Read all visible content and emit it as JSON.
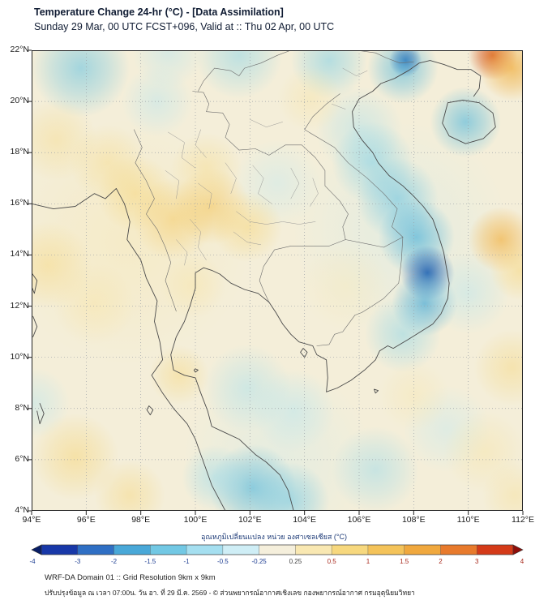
{
  "header": {
    "title": "Temperature Change 24-hr (°C) - [Data Assimilation]",
    "subtitle": "Sunday 29 Mar, 00 UTC FCST+096, Valid at :: Thu 02 Apr, 00 UTC"
  },
  "theme": {
    "title_color": "#101c33",
    "axis_text_color": "#1a1a1a",
    "colorbar_label_color": "#1f3c78",
    "footer_text_color": "#222222",
    "map_frame_color": "#222222",
    "grid_color": "#9aa0a6",
    "coast_color": "#4a4a4a",
    "border_color": "#6b6b6b",
    "minor_line_color": "#8d8d8d",
    "background_color": "#f4eed9",
    "negative_tick_color": "#1f3f93",
    "positive_tick_color": "#a8291c",
    "zero_tick_color": "#444444"
  },
  "map": {
    "extent": {
      "lon_min": 94,
      "lon_max": 112,
      "lat_min": 4,
      "lat_max": 22
    },
    "grid_step_deg": 2,
    "lat_ticks": [
      {
        "value": 22,
        "label": "22°N"
      },
      {
        "value": 20,
        "label": "20°N"
      },
      {
        "value": 18,
        "label": "18°N"
      },
      {
        "value": 16,
        "label": "16°N"
      },
      {
        "value": 14,
        "label": "14°N"
      },
      {
        "value": 12,
        "label": "12°N"
      },
      {
        "value": 10,
        "label": "10°N"
      },
      {
        "value": 8,
        "label": "8°N"
      },
      {
        "value": 6,
        "label": "6°N"
      },
      {
        "value": 4,
        "label": "4°N"
      }
    ],
    "lon_ticks": [
      {
        "value": 94,
        "label": "94°E"
      },
      {
        "value": 96,
        "label": "96°E"
      },
      {
        "value": 98,
        "label": "98°E"
      },
      {
        "value": 100,
        "label": "100°E"
      },
      {
        "value": 102,
        "label": "102°E"
      },
      {
        "value": 104,
        "label": "104°E"
      },
      {
        "value": 106,
        "label": "106°E"
      },
      {
        "value": 108,
        "label": "108°E"
      },
      {
        "value": 110,
        "label": "110°E"
      },
      {
        "value": 112,
        "label": "112°E"
      }
    ]
  },
  "chart_data": {
    "type": "heatmap",
    "units": "°C",
    "extent": {
      "lon_min": 94,
      "lon_max": 112,
      "lat_min": 4,
      "lat_max": 22
    },
    "colormap": [
      {
        "value": -4,
        "color": "#08276b"
      },
      {
        "value": -3,
        "color": "#1d4fa5"
      },
      {
        "value": -2,
        "color": "#2f86c8"
      },
      {
        "value": -1.5,
        "color": "#4fb3da"
      },
      {
        "value": -1,
        "color": "#7dcfe6"
      },
      {
        "value": -0.5,
        "color": "#bfe9f2"
      },
      {
        "value": 0,
        "color": "#f4eed9"
      },
      {
        "value": 0.5,
        "color": "#f7e6ad"
      },
      {
        "value": 1,
        "color": "#f6d67c"
      },
      {
        "value": 1.5,
        "color": "#f3c058"
      },
      {
        "value": 2,
        "color": "#efa83e"
      },
      {
        "value": 3,
        "color": "#e2712b"
      },
      {
        "value": 4,
        "color": "#b21a0f"
      }
    ],
    "features": [
      {
        "lon": 97.5,
        "lat": 14.5,
        "value": 0.5,
        "radius": 4.5
      },
      {
        "lon": 107.5,
        "lat": 15.0,
        "value": -0.4,
        "radius": 4.0
      },
      {
        "lon": 103.0,
        "lat": 6.0,
        "value": -0.4,
        "radius": 3.5
      },
      {
        "lon": 95.8,
        "lat": 21.3,
        "value": -1.2,
        "radius": 1.8
      },
      {
        "lon": 99.0,
        "lat": 21.9,
        "value": -0.6,
        "radius": 1.3
      },
      {
        "lon": 101.6,
        "lat": 21.8,
        "value": -0.9,
        "radius": 1.6
      },
      {
        "lon": 104.9,
        "lat": 21.6,
        "value": -1.0,
        "radius": 1.4
      },
      {
        "lon": 107.7,
        "lat": 21.6,
        "value": -3.0,
        "radius": 0.6
      },
      {
        "lon": 107.6,
        "lat": 21.3,
        "value": -1.4,
        "radius": 1.3
      },
      {
        "lon": 109.9,
        "lat": 19.2,
        "value": -1.4,
        "radius": 1.3
      },
      {
        "lon": 106.0,
        "lat": 18.9,
        "value": -0.7,
        "radius": 1.6
      },
      {
        "lon": 106.5,
        "lat": 17.6,
        "value": -1.0,
        "radius": 1.5
      },
      {
        "lon": 107.4,
        "lat": 16.2,
        "value": -1.2,
        "radius": 1.5
      },
      {
        "lon": 108.1,
        "lat": 14.7,
        "value": -1.5,
        "radius": 1.4
      },
      {
        "lon": 108.5,
        "lat": 13.3,
        "value": -2.6,
        "radius": 1.0
      },
      {
        "lon": 108.4,
        "lat": 12.1,
        "value": -1.6,
        "radius": 1.2
      },
      {
        "lon": 107.6,
        "lat": 10.9,
        "value": -0.9,
        "radius": 1.4
      },
      {
        "lon": 103.0,
        "lat": 16.8,
        "value": -0.5,
        "radius": 1.6
      },
      {
        "lon": 101.9,
        "lat": 8.8,
        "value": -0.7,
        "radius": 1.6
      },
      {
        "lon": 103.6,
        "lat": 7.9,
        "value": -0.6,
        "radius": 1.5
      },
      {
        "lon": 102.1,
        "lat": 4.9,
        "value": -1.4,
        "radius": 1.6
      },
      {
        "lon": 103.5,
        "lat": 4.4,
        "value": -1.1,
        "radius": 1.4
      },
      {
        "lon": 100.7,
        "lat": 5.3,
        "value": -0.8,
        "radius": 1.2
      },
      {
        "lon": 106.6,
        "lat": 5.6,
        "value": -0.8,
        "radius": 1.6
      },
      {
        "lon": 109.2,
        "lat": 7.2,
        "value": -0.5,
        "radius": 1.6
      },
      {
        "lon": 94.1,
        "lat": 8.2,
        "value": -0.6,
        "radius": 1.3
      },
      {
        "lon": 110.0,
        "lat": 12.5,
        "value": -0.6,
        "radius": 1.5
      },
      {
        "lon": 98.6,
        "lat": 20.0,
        "value": -0.6,
        "radius": 1.3
      },
      {
        "lon": 110.9,
        "lat": 21.8,
        "value": 3.2,
        "radius": 0.9
      },
      {
        "lon": 111.6,
        "lat": 21.3,
        "value": 1.8,
        "radius": 1.2
      },
      {
        "lon": 94.9,
        "lat": 18.5,
        "value": 0.8,
        "radius": 1.5
      },
      {
        "lon": 96.8,
        "lat": 17.6,
        "value": 0.8,
        "radius": 1.4
      },
      {
        "lon": 97.8,
        "lat": 16.4,
        "value": 1.0,
        "radius": 1.4
      },
      {
        "lon": 99.2,
        "lat": 15.4,
        "value": 1.2,
        "radius": 1.5
      },
      {
        "lon": 100.6,
        "lat": 15.9,
        "value": 1.3,
        "radius": 1.4
      },
      {
        "lon": 101.9,
        "lat": 15.1,
        "value": 1.0,
        "radius": 1.3
      },
      {
        "lon": 100.4,
        "lat": 17.4,
        "value": 0.8,
        "radius": 1.3
      },
      {
        "lon": 94.6,
        "lat": 13.6,
        "value": 0.9,
        "radius": 1.6
      },
      {
        "lon": 96.3,
        "lat": 12.1,
        "value": 0.6,
        "radius": 1.5
      },
      {
        "lon": 99.4,
        "lat": 9.3,
        "value": 0.9,
        "radius": 1.1
      },
      {
        "lon": 95.6,
        "lat": 6.1,
        "value": 1.0,
        "radius": 1.6
      },
      {
        "lon": 97.6,
        "lat": 4.6,
        "value": 0.9,
        "radius": 1.3
      },
      {
        "lon": 111.2,
        "lat": 14.6,
        "value": 1.7,
        "radius": 1.2
      },
      {
        "lon": 111.9,
        "lat": 13.4,
        "value": 1.0,
        "radius": 1.1
      },
      {
        "lon": 111.6,
        "lat": 9.6,
        "value": 0.9,
        "radius": 1.4
      },
      {
        "lon": 110.6,
        "lat": 6.3,
        "value": 0.6,
        "radius": 1.5
      },
      {
        "lon": 104.2,
        "lat": 20.1,
        "value": 0.6,
        "radius": 1.2
      },
      {
        "lon": 108.0,
        "lat": 8.5,
        "value": 0.5,
        "radius": 1.3
      },
      {
        "lon": 99.9,
        "lat": 12.8,
        "value": 0.6,
        "radius": 1.2
      },
      {
        "lon": 105.5,
        "lat": 12.8,
        "value": 0.4,
        "radius": 1.6
      },
      {
        "lon": 111.7,
        "lat": 4.6,
        "value": 0.7,
        "radius": 1.2
      }
    ]
  },
  "colorbar": {
    "label": "อุณหภูมิเปลี่ยนแปลง หน่วย องศาเซลเซียส (°C)",
    "min": -4,
    "max": 4,
    "levels": [
      "-4",
      "-3",
      "-2",
      "-1.5",
      "-1",
      "-0.5",
      "-0.25",
      "0.25",
      "0.5",
      "1",
      "1.5",
      "2",
      "3",
      "4"
    ],
    "segment_colors": [
      "#1838a8",
      "#2f6fc4",
      "#49a8d8",
      "#72c8e4",
      "#a5dff0",
      "#cfeef6",
      "#f5efdc",
      "#f9e8b2",
      "#f7d87e",
      "#f4c35a",
      "#f0a83e",
      "#e87a2c",
      "#d43a18"
    ],
    "arrow_left_color": "#081d66",
    "arrow_right_color": "#8f0e0a"
  },
  "footer": {
    "line1": "WRF-DA Domain 01 :: Grid Resolution 9km x 9km",
    "line2": "ปรับปรุงข้อมูล ณ เวลา 07:00น. วัน อา. ที่ 29 มี.ค. 2569 - © ส่วนพยากรณ์อากาศเชิงเลข กองพยากรณ์อากาศ กรมอุตุนิยมวิทยา"
  }
}
